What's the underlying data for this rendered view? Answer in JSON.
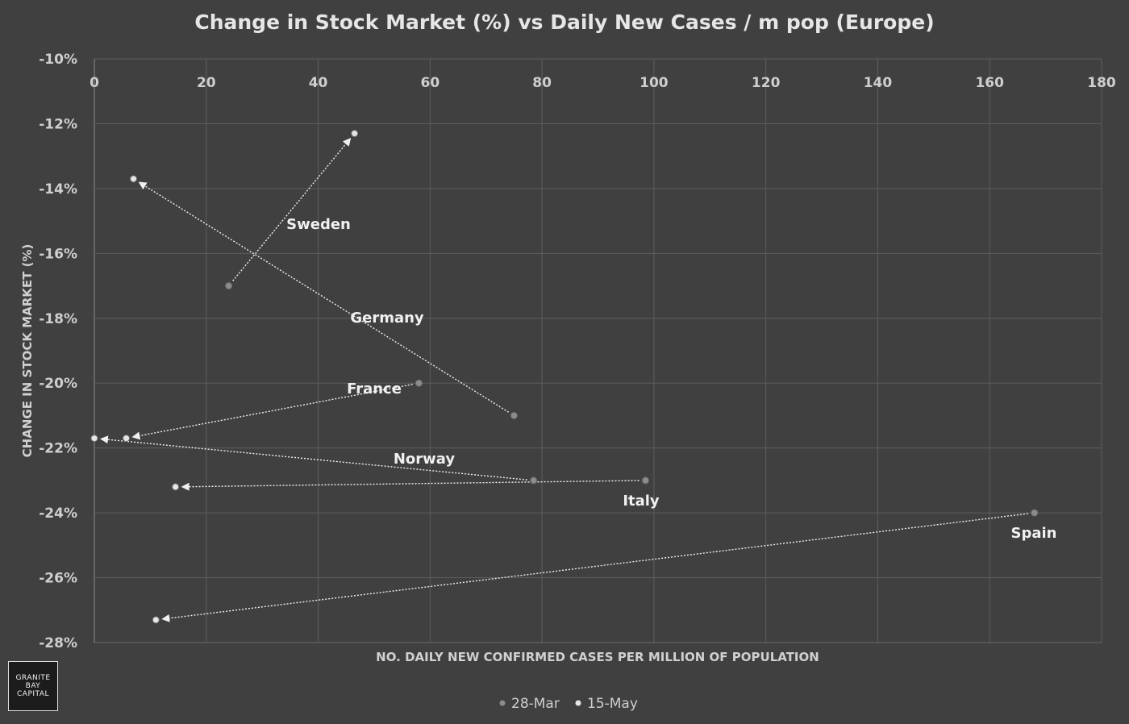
{
  "chart_data": {
    "type": "scatter",
    "title": "Change in Stock Market (%) vs Daily New Cases / m pop (Europe)",
    "xlabel": "NO. DAILY NEW CONFIRMED CASES PER MILLION OF POPULATION",
    "ylabel": "CHANGE IN STOCK MARKET (%)",
    "xlim": [
      0,
      180
    ],
    "ylim": [
      -28,
      -10
    ],
    "xticks": [
      "0",
      "20",
      "40",
      "60",
      "80",
      "100",
      "120",
      "140",
      "160",
      "180"
    ],
    "yticks": [
      "-10%",
      "-12%",
      "-14%",
      "-16%",
      "-18%",
      "-20%",
      "-22%",
      "-24%",
      "-26%",
      "-28%"
    ],
    "grid": true,
    "legend_position": "bottom",
    "series": [
      {
        "name": "28-Mar",
        "color": "#8c8c8c"
      },
      {
        "name": "15-May",
        "color": "#e6e6e6"
      }
    ],
    "countries": [
      {
        "label": "Sweden",
        "from": {
          "x": 24,
          "y": -17.0
        },
        "to": {
          "x": 46.5,
          "y": -12.3
        }
      },
      {
        "label": "Germany",
        "from": {
          "x": 75,
          "y": -21.0
        },
        "to": {
          "x": 7,
          "y": -13.7
        }
      },
      {
        "label": "France",
        "from": {
          "x": 58,
          "y": -20.0
        },
        "to": {
          "x": 5.7,
          "y": -21.7
        }
      },
      {
        "label": "Norway",
        "from": {
          "x": 78.5,
          "y": -23.0
        },
        "to": {
          "x": 0,
          "y": -21.7
        }
      },
      {
        "label": "Italy",
        "from": {
          "x": 98.5,
          "y": -23.0
        },
        "to": {
          "x": 14.5,
          "y": -23.2
        }
      },
      {
        "label": "Spain",
        "from": {
          "x": 168,
          "y": -24.0
        },
        "to": {
          "x": 11,
          "y": -27.3
        }
      }
    ]
  },
  "logo": {
    "line1": "GRANITE",
    "line2": "BAY",
    "line3": "CAPITAL"
  }
}
